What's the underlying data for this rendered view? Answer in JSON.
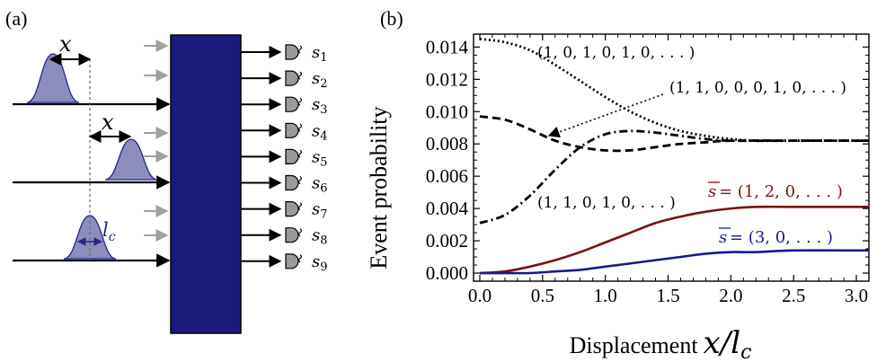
{
  "panel_a": {
    "label": "(a)",
    "displacement_label": "x",
    "coherence_label": "l",
    "coherence_sub": "c",
    "detectors": [
      {
        "s": "s",
        "sub": "1"
      },
      {
        "s": "s",
        "sub": "2"
      },
      {
        "s": "s",
        "sub": "3"
      },
      {
        "s": "s",
        "sub": "4"
      },
      {
        "s": "s",
        "sub": "5"
      },
      {
        "s": "s",
        "sub": "6"
      },
      {
        "s": "s",
        "sub": "7"
      },
      {
        "s": "s",
        "sub": "8"
      },
      {
        "s": "s",
        "sub": "9"
      }
    ],
    "colors": {
      "box": "#1a1a7a",
      "pulse_fill": "#8d8dbb",
      "pulse_edge": "#24248a",
      "gray_arrow": "#a0a0a0"
    }
  },
  "panel_b": {
    "label": "(b)"
  },
  "chart_data": {
    "type": "line",
    "xlabel_text": "Displacement",
    "xlabel_math": "x",
    "xlabel_math2": "l",
    "xlabel_sub": "c",
    "ylabel": "Event probability",
    "xlim": [
      -0.05,
      3.1
    ],
    "ylim": [
      -0.0005,
      0.0148
    ],
    "xticks": [
      "0.0",
      "0.5",
      "1.0",
      "1.5",
      "2.0",
      "2.5",
      "3.0"
    ],
    "xtick_values": [
      0.0,
      0.5,
      1.0,
      1.5,
      2.0,
      2.5,
      3.0
    ],
    "yticks": [
      "0.000",
      "0.002",
      "0.004",
      "0.006",
      "0.008",
      "0.010",
      "0.012",
      "0.014"
    ],
    "ytick_values": [
      0.0,
      0.002,
      0.004,
      0.006,
      0.008,
      0.01,
      0.012,
      0.014
    ],
    "series": [
      {
        "label": "(1, 0, 1, 0, 1, 0, . . . )",
        "style": "dotted",
        "color": "#000000",
        "x": [
          0.0,
          0.2,
          0.4,
          0.6,
          0.8,
          1.0,
          1.2,
          1.4,
          1.6,
          1.8,
          2.0,
          2.2,
          2.5,
          3.0,
          3.1
        ],
        "y": [
          0.0145,
          0.0143,
          0.0138,
          0.0129,
          0.0119,
          0.0109,
          0.01,
          0.0093,
          0.0088,
          0.0085,
          0.0083,
          0.0082,
          0.0082,
          0.0082,
          0.0082
        ]
      },
      {
        "label": "(1, 1, 0, 0, 0, 1, 0, . . . )",
        "style": "dashed",
        "color": "#000000",
        "x": [
          0.0,
          0.2,
          0.4,
          0.6,
          0.8,
          1.0,
          1.2,
          1.4,
          1.6,
          1.8,
          2.0,
          2.5,
          3.0,
          3.1
        ],
        "y": [
          0.0097,
          0.0095,
          0.0089,
          0.0082,
          0.0078,
          0.0076,
          0.0076,
          0.0078,
          0.008,
          0.0081,
          0.0082,
          0.0082,
          0.0082,
          0.0082
        ]
      },
      {
        "label": "(1, 1, 0, 1, 0, . . . )",
        "style": "dashdot",
        "color": "#000000",
        "x": [
          0.0,
          0.2,
          0.4,
          0.6,
          0.8,
          1.0,
          1.2,
          1.4,
          1.6,
          1.8,
          2.0,
          2.5,
          3.0,
          3.1
        ],
        "y": [
          0.0031,
          0.0036,
          0.0048,
          0.0064,
          0.0078,
          0.0086,
          0.0088,
          0.0087,
          0.0085,
          0.0083,
          0.0082,
          0.0082,
          0.0082,
          0.0082
        ]
      },
      {
        "label_pre": "s",
        "label_post": " = (1, 2, 0, . . . )",
        "style": "solid",
        "color": "#7a1010",
        "x": [
          0.0,
          0.2,
          0.4,
          0.6,
          0.8,
          1.0,
          1.2,
          1.4,
          1.6,
          1.8,
          2.0,
          2.2,
          2.5,
          3.0,
          3.1
        ],
        "y": [
          0.0,
          0.0001,
          0.0004,
          0.0008,
          0.0013,
          0.0019,
          0.0025,
          0.0031,
          0.0035,
          0.0038,
          0.004,
          0.0041,
          0.0041,
          0.0041,
          0.0041
        ]
      },
      {
        "label_pre": "s",
        "label_post": " = (3, 0, . . . )",
        "style": "solid",
        "color": "#1a1a8c",
        "x": [
          0.0,
          0.2,
          0.4,
          0.6,
          0.8,
          1.0,
          1.2,
          1.4,
          1.6,
          1.8,
          2.0,
          2.2,
          2.5,
          3.0,
          3.1
        ],
        "y": [
          0.0,
          0.0,
          0.0,
          0.0001,
          0.0002,
          0.0004,
          0.0006,
          0.0008,
          0.001,
          0.0012,
          0.0013,
          0.0013,
          0.0014,
          0.0014,
          0.0014
        ]
      }
    ]
  }
}
